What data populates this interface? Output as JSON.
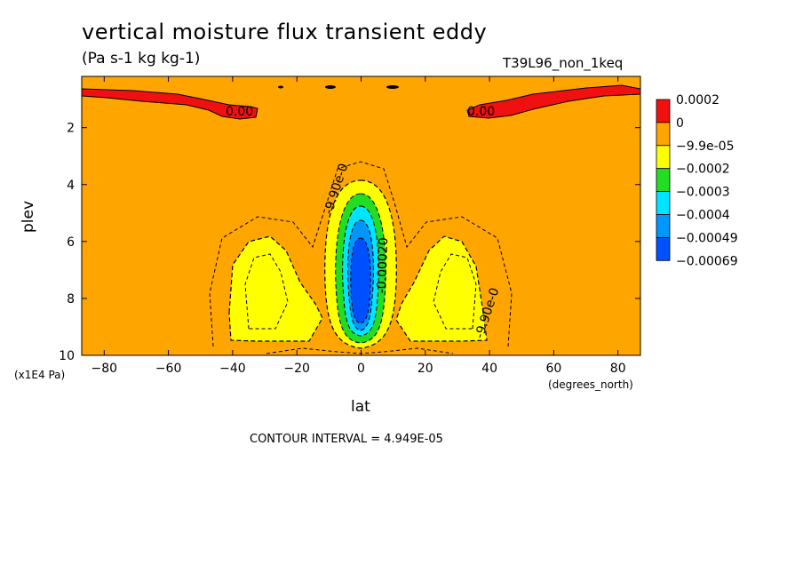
{
  "title": "vertical moisture flux transient eddy",
  "units": "(Pa s-1 kg kg-1)",
  "run_name": "T39L96_non_1keq",
  "contour_interval_text": "CONTOUR INTERVAL = 4.949E-05",
  "colors": {
    "red": "#f01010",
    "orange": "#ffa500",
    "yellow": "#ffff00",
    "green": "#22dd22",
    "cyan": "#00e5ff",
    "lightblue": "#0096ff",
    "blue": "#0050ff"
  },
  "chart_data": {
    "type": "contour",
    "xlabel": "lat",
    "ylabel": "plev",
    "x_unit": "(degrees_north)",
    "y_unit": "(x1E4 Pa)",
    "xlim": [
      -87,
      87
    ],
    "ylim": [
      10,
      0.2
    ],
    "x_ticks": [
      "-80",
      "-60",
      "-40",
      "-20",
      "0",
      "20",
      "40",
      "60",
      "80"
    ],
    "y_ticks": [
      "2",
      "4",
      "6",
      "8",
      "10"
    ],
    "colorbar": {
      "labels": [
        "0.0002",
        "0",
        "-9.9e-05",
        "-0.0002",
        "-0.0003",
        "-0.0004",
        "-0.00049",
        "-0.00069"
      ],
      "colors": [
        "#f01010",
        "#ffa500",
        "#ffff00",
        "#22dd22",
        "#00e5ff",
        "#0096ff",
        "#0050ff"
      ]
    },
    "contour_labels": [
      "0.00",
      "0.00",
      "-9.90e-0",
      "-9.90e-0",
      "-0.00020"
    ],
    "regions": [
      {
        "level": "0 to 0.0002",
        "color": "red",
        "where": "upper levels near 35-87 deg in both hemispheres"
      },
      {
        "level": "-9.9e-05 to -0.0002",
        "color": "yellow",
        "where": "lobes near 30S and 30N, 6-9.5 x1E4 Pa, and equatorial column"
      },
      {
        "level": "-0.0002 to -0.0003",
        "color": "green",
        "where": "equatorial column 4.3-9.5 x1E4 Pa"
      },
      {
        "level": "-0.0003 to -0.0004",
        "color": "cyan",
        "where": "equatorial column"
      },
      {
        "level": "-0.0004 to -0.00049",
        "color": "lightblue",
        "where": "equatorial column"
      },
      {
        "level": "-0.00049 to -0.00069",
        "color": "blue",
        "where": "equatorial core 6-9 x1E4 Pa"
      }
    ]
  }
}
